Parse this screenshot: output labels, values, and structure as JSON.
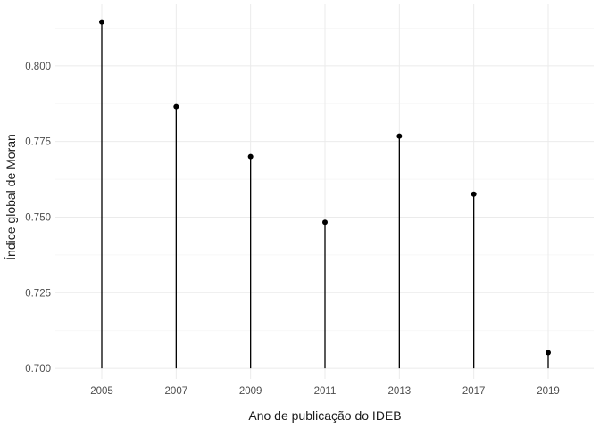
{
  "chart_data": {
    "type": "lollipop",
    "categories": [
      "2005",
      "2007",
      "2009",
      "2011",
      "2013",
      "2017",
      "2019"
    ],
    "values": [
      0.8145,
      0.7865,
      0.77,
      0.7483,
      0.7768,
      0.7576,
      0.7052
    ],
    "xlabel": "Ano de publicação do IDEB",
    "ylabel": "Índice global de Moran",
    "ylim": [
      0.6965,
      0.8203
    ],
    "yticks": [
      "0.700",
      "0.725",
      "0.750",
      "0.775",
      "0.800"
    ],
    "baseline": 0.7,
    "grid": true,
    "theme": "minimal",
    "point_color": "#000000",
    "segment_color": "#000000"
  }
}
